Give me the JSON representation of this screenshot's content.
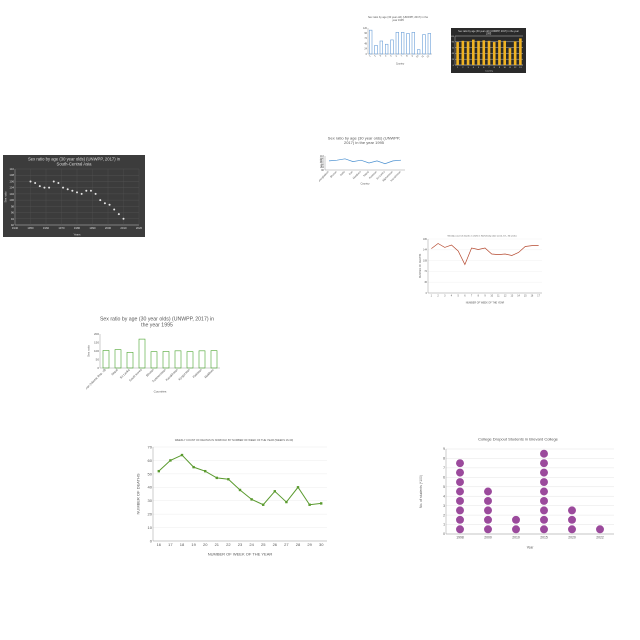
{
  "charts": [
    {
      "id": "p1",
      "chart_data": {
        "type": "bar",
        "style": "outline",
        "title": "Sex ratio by age (30 year old) (UNWPP, 2017) in the year 1995",
        "xlabel": "Country",
        "ylabel": "",
        "categories": [
          "1",
          "2",
          "3",
          "4",
          "5",
          "6",
          "7",
          "8",
          "9",
          "10",
          "11",
          "12"
        ],
        "values": [
          110,
          40,
          60,
          45,
          65,
          100,
          100,
          95,
          100,
          20,
          90,
          95
        ],
        "ylim": [
          0,
          120
        ],
        "bg": "#ffffff",
        "color": "#6a9fd8",
        "grid": false
      }
    },
    {
      "id": "p2",
      "chart_data": {
        "type": "bar",
        "style": "filled",
        "title": "Sex ratio by age (30 year old) (UNWPP, 2017) in the year 1995",
        "xlabel": "Country",
        "ylabel": "",
        "categories": [
          "1",
          "2",
          "3",
          "4",
          "5",
          "6",
          "7",
          "8",
          "9",
          "10",
          "11",
          "12",
          "13"
        ],
        "values": [
          95,
          100,
          98,
          105,
          100,
          102,
          100,
          95,
          103,
          100,
          70,
          98,
          110
        ],
        "ylim": [
          0,
          120
        ],
        "bg": "#2a2a2a",
        "color": "#f0b323",
        "grid": true
      }
    },
    {
      "id": "p3",
      "chart_data": {
        "type": "scatter",
        "title": "Sex ratio by age (30 year olds) (UNWPP, 2017) in South-Central Asia",
        "xlabel": "Years",
        "ylabel": "Sex ratio",
        "x": [
          1950,
          1953,
          1956,
          1959,
          1962,
          1965,
          1968,
          1971,
          1974,
          1977,
          1980,
          1983,
          1986,
          1989,
          1992,
          1995,
          1998,
          2001,
          2004,
          2007,
          2010
        ],
        "y": [
          106,
          105.5,
          104.5,
          104,
          104,
          106,
          105.5,
          104,
          103.5,
          103,
          102.5,
          102,
          103,
          103,
          102,
          100,
          99,
          98.5,
          97,
          95.5,
          94
        ],
        "xlim": [
          1940,
          2020
        ],
        "ylim": [
          92,
          110
        ],
        "xticks": [
          "1940",
          "1950",
          "1960",
          "1970",
          "1980",
          "1990",
          "2000",
          "2010",
          "2020"
        ],
        "yticks": [
          "92",
          "94",
          "96",
          "98",
          "100",
          "102",
          "104",
          "106",
          "108",
          "110"
        ],
        "bg": "#3c3c3c",
        "color": "#e6e6e6",
        "grid": true
      }
    },
    {
      "id": "p4",
      "chart_data": {
        "type": "line",
        "title": "Sex ratio by age (30 year olds) (UNWPP, 2017) in the year 1995",
        "xlabel": "Country",
        "ylabel": "Sex ratio",
        "categories": [
          "Bangladesh",
          "Bhutan",
          "India",
          "Iran",
          "Maldives",
          "Nepal",
          "Pakistan",
          "Sri Lanka",
          "Afghanistan",
          "Kazakhstan"
        ],
        "values": [
          103,
          104,
          106,
          102,
          104,
          100,
          103,
          99,
          103,
          104
        ],
        "ylim": [
          90,
          110
        ],
        "bg": "#ffffff",
        "color": "#4a90d0",
        "grid": false
      }
    },
    {
      "id": "p5",
      "chart_data": {
        "type": "line",
        "title": "Weekly count of deaths in 2020 in Norfolk (by date week, 18 - 30 week)",
        "xlabel": "NUMBER OF WEEK OF THE YEAR",
        "ylabel": "NUMBER OF DEATHS",
        "categories": [
          "1",
          "2",
          "3",
          "4",
          "5",
          "6",
          "7",
          "8",
          "9",
          "10",
          "11",
          "12",
          "13",
          "14",
          "15",
          "16",
          "17"
        ],
        "values": [
          148,
          165,
          152,
          160,
          140,
          95,
          150,
          145,
          150,
          130,
          128,
          130,
          125,
          135,
          155,
          158,
          158
        ],
        "ylim": [
          0,
          180
        ],
        "bg": "#ffffff",
        "color": "#b5492f",
        "grid": true
      }
    },
    {
      "id": "p6",
      "chart_data": {
        "type": "bar",
        "style": "outline",
        "title": "Sex ratio by age (30 year olds) (UNWPP, 2017) in the year 1995",
        "xlabel": "Countries",
        "ylabel": "Sex ratio",
        "categories": [
          "Iran (Islamic Rep. of)",
          "Nepal",
          "Sri Lanka",
          "South Korea",
          "Bhutan",
          "Turkmenistan",
          "Kazakhstan",
          "Kyrgyzstan",
          "Pakistan",
          "Maldives"
        ],
        "values": [
          103,
          108,
          92,
          170,
          96,
          97,
          101,
          96,
          101,
          102
        ],
        "ylim": [
          0,
          200
        ],
        "yticks": [
          "0",
          "50",
          "100",
          "150",
          "200"
        ],
        "bg": "#ffffff",
        "color": "#4aa32d",
        "grid": false
      }
    },
    {
      "id": "p7",
      "chart_data": {
        "type": "line",
        "title": "WEEKLY COUNT OF DEATHS IN NORFOLK BY NUMBER OF WEEK OF THE YEAR (WEEKS 16-30)",
        "xlabel": "NUMBER OF WEEK OF THE YEAR",
        "ylabel": "NUMBER OF DEATHS",
        "categories": [
          "16",
          "17",
          "18",
          "19",
          "20",
          "21",
          "22",
          "23",
          "24",
          "25",
          "26",
          "27",
          "28",
          "29",
          "30"
        ],
        "values": [
          52,
          60,
          64,
          55,
          52,
          47,
          46,
          38,
          31,
          27,
          37,
          29,
          40,
          27,
          28
        ],
        "ylim": [
          0,
          70
        ],
        "yticks": [
          "0",
          "10",
          "20",
          "30",
          "40",
          "50",
          "60",
          "70"
        ],
        "bg": "#ffffff",
        "color": "#5a9a2e",
        "grid": true
      }
    },
    {
      "id": "p8",
      "chart_data": {
        "type": "dot",
        "title": "College Dropout Students in Brevard College",
        "xlabel": "Year",
        "ylabel": "No. of students (*100)",
        "categories": [
          "1998",
          "2000",
          "2010",
          "2015",
          "2020",
          "2022"
        ],
        "values": [
          8,
          5,
          2,
          9,
          3,
          1
        ],
        "ylim": [
          0,
          9
        ],
        "yticks": [
          "0",
          "1",
          "2",
          "3",
          "4",
          "5",
          "6",
          "7",
          "8",
          "9"
        ],
        "bg": "#ffffff",
        "color": "#9b4a9c",
        "grid": true
      }
    }
  ]
}
